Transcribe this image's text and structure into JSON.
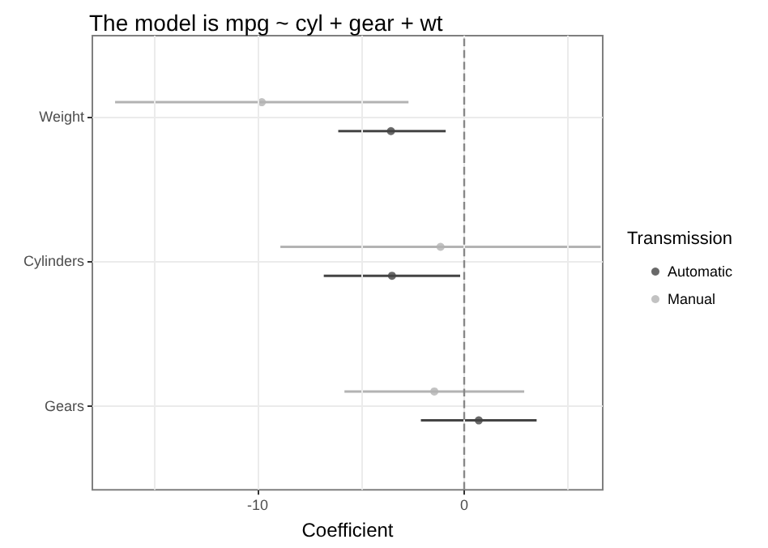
{
  "chart_data": {
    "type": "scatter",
    "orientation": "horizontal",
    "title": "The model is mpg ~ cyl + gear + wt",
    "xlabel": "Coefficient",
    "legend_title": "Transmission",
    "categories": [
      "Weight",
      "Cylinders",
      "Gears"
    ],
    "series": [
      {
        "name": "Automatic",
        "color": "#444444",
        "values": [
          -3.55,
          -3.5,
          0.7
        ],
        "errors": [
          [
            -6.1,
            -0.9
          ],
          [
            -6.8,
            -0.2
          ],
          [
            -2.1,
            3.5
          ]
        ]
      },
      {
        "name": "Manual",
        "color": "#b3b3b3",
        "values": [
          -9.8,
          -1.15,
          -1.45
        ],
        "errors": [
          [
            -16.9,
            -2.7
          ],
          [
            -8.9,
            6.6
          ],
          [
            -5.8,
            2.9
          ]
        ]
      }
    ],
    "xlim": [
      -18,
      6.7
    ],
    "xticks": [
      {
        "value": -15,
        "label": null
      },
      -10,
      {
        "value": -5,
        "label": null
      },
      0,
      {
        "value": 5,
        "label": null
      }
    ],
    "ref_lines": [
      {
        "axis": "x",
        "value": 0,
        "line_style": "dashed",
        "color": "#888888"
      }
    ],
    "grid": true,
    "legend": "right",
    "marker": "circle"
  }
}
